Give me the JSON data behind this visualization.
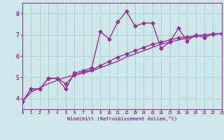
{
  "background_color": "#cce8e8",
  "grid_color": "#aacccc",
  "line_color": "#993399",
  "marker_size": 2.5,
  "line_width": 1.0,
  "xlabel": "Windchill (Refroidissement éolien,°C)",
  "xlim": [
    0,
    23
  ],
  "ylim": [
    3.5,
    8.5
  ],
  "yticks": [
    4,
    5,
    6,
    7,
    8
  ],
  "xticks": [
    0,
    1,
    2,
    3,
    4,
    5,
    6,
    7,
    8,
    9,
    10,
    11,
    12,
    13,
    14,
    15,
    16,
    17,
    18,
    19,
    20,
    21,
    22,
    23
  ],
  "series1": [
    [
      0,
      3.85
    ],
    [
      1,
      4.45
    ],
    [
      2,
      4.45
    ],
    [
      3,
      4.95
    ],
    [
      4,
      4.95
    ],
    [
      5,
      4.45
    ],
    [
      6,
      5.2
    ],
    [
      7,
      5.3
    ],
    [
      8,
      5.45
    ],
    [
      9,
      7.15
    ],
    [
      10,
      6.8
    ],
    [
      11,
      7.6
    ],
    [
      12,
      8.1
    ],
    [
      13,
      7.4
    ],
    [
      14,
      7.55
    ],
    [
      15,
      7.55
    ],
    [
      16,
      6.35
    ],
    [
      17,
      6.65
    ],
    [
      18,
      7.3
    ],
    [
      19,
      6.7
    ],
    [
      20,
      7.0
    ],
    [
      21,
      6.85
    ],
    [
      22,
      7.05
    ],
    [
      23,
      7.05
    ]
  ],
  "series2": [
    [
      0,
      3.85
    ],
    [
      1,
      4.45
    ],
    [
      2,
      4.45
    ],
    [
      3,
      4.95
    ],
    [
      4,
      4.95
    ],
    [
      5,
      4.7
    ],
    [
      6,
      5.1
    ],
    [
      7,
      5.25
    ],
    [
      8,
      5.35
    ],
    [
      9,
      5.55
    ],
    [
      10,
      5.75
    ],
    [
      11,
      5.95
    ],
    [
      12,
      6.1
    ],
    [
      13,
      6.25
    ],
    [
      14,
      6.4
    ],
    [
      15,
      6.55
    ],
    [
      16,
      6.65
    ],
    [
      17,
      6.75
    ],
    [
      18,
      6.85
    ],
    [
      19,
      6.9
    ],
    [
      20,
      6.95
    ],
    [
      21,
      7.0
    ],
    [
      22,
      7.02
    ],
    [
      23,
      7.05
    ]
  ],
  "series3": [
    [
      0,
      3.85
    ],
    [
      1,
      4.3
    ],
    [
      2,
      4.5
    ],
    [
      3,
      4.7
    ],
    [
      4,
      4.85
    ],
    [
      5,
      5.0
    ],
    [
      6,
      5.1
    ],
    [
      7,
      5.2
    ],
    [
      8,
      5.3
    ],
    [
      9,
      5.45
    ],
    [
      10,
      5.6
    ],
    [
      11,
      5.75
    ],
    [
      12,
      5.95
    ],
    [
      13,
      6.1
    ],
    [
      14,
      6.25
    ],
    [
      15,
      6.4
    ],
    [
      16,
      6.55
    ],
    [
      17,
      6.65
    ],
    [
      18,
      6.75
    ],
    [
      19,
      6.85
    ],
    [
      20,
      6.92
    ],
    [
      21,
      6.98
    ],
    [
      22,
      7.02
    ],
    [
      23,
      7.05
    ]
  ]
}
